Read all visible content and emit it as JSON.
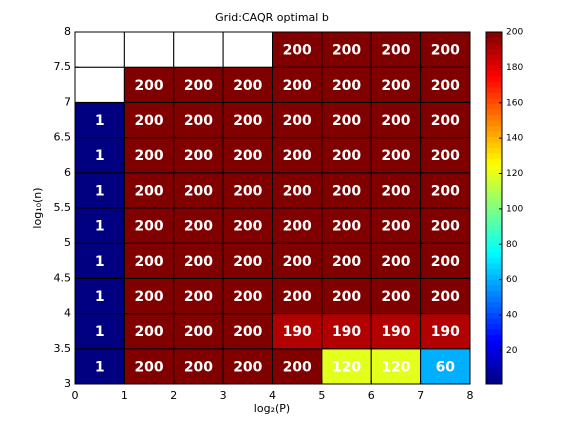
{
  "chart_data": {
    "type": "heatmap",
    "title": "Grid:CAQR optimal b",
    "x_label": "log₂(P)",
    "y_label": "log₁₀(n)",
    "x": [
      0,
      1,
      2,
      3,
      4,
      5,
      6,
      7
    ],
    "y": [
      3,
      3.5,
      4,
      4.5,
      5,
      5.5,
      6,
      6.5,
      7,
      7.5
    ],
    "z": [
      [
        1,
        200,
        200,
        200,
        200,
        120,
        120,
        60
      ],
      [
        1,
        200,
        200,
        200,
        190,
        190,
        190,
        190
      ],
      [
        1,
        200,
        200,
        200,
        200,
        200,
        200,
        200
      ],
      [
        1,
        200,
        200,
        200,
        200,
        200,
        200,
        200
      ],
      [
        1,
        200,
        200,
        200,
        200,
        200,
        200,
        200
      ],
      [
        1,
        200,
        200,
        200,
        200,
        200,
        200,
        200
      ],
      [
        1,
        200,
        200,
        200,
        200,
        200,
        200,
        200
      ],
      [
        1,
        200,
        200,
        200,
        200,
        200,
        200,
        200
      ],
      [
        null,
        200,
        200,
        200,
        200,
        200,
        200,
        200
      ],
      [
        null,
        null,
        null,
        null,
        200,
        200,
        200,
        200
      ]
    ],
    "xlim": [
      0,
      8
    ],
    "xticks": [
      0,
      1,
      2,
      3,
      4,
      5,
      6,
      7,
      8
    ],
    "ylim": [
      3,
      8
    ],
    "yticks": [
      3,
      3.5,
      4,
      4.5,
      5,
      5.5,
      6,
      6.5,
      7,
      7.5,
      8
    ],
    "colormap": "jet",
    "clim": [
      1,
      200
    ],
    "cticks": [
      20,
      40,
      60,
      80,
      100,
      120,
      140,
      160,
      180,
      200
    ]
  }
}
